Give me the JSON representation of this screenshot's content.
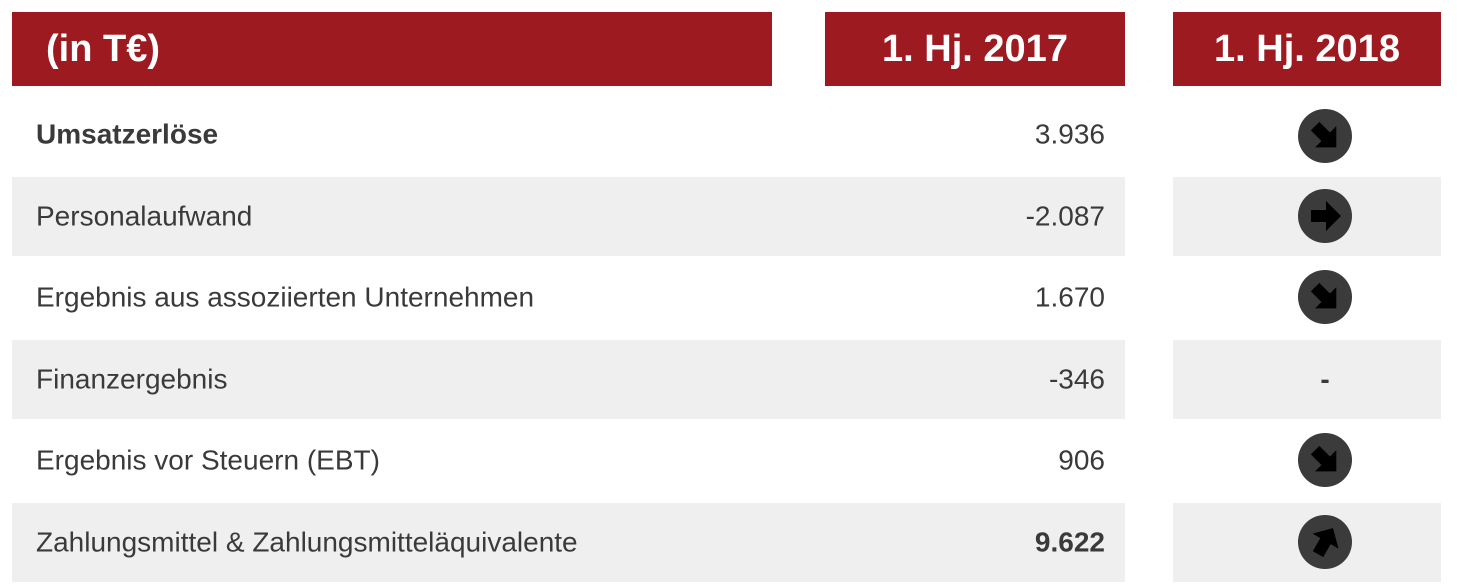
{
  "table": {
    "header": [
      "(in T€)",
      "1. Hj. 2017",
      "1. Hj. 2018"
    ],
    "rows": [
      [
        "Umsatzerlöse",
        "3.936"
      ],
      [
        "Personalaufwand",
        "-2.087"
      ],
      [
        "Ergebnis aus assoziierten Unternehmen",
        "1.670"
      ],
      [
        "Finanzergebnis",
        "-346",
        "-"
      ],
      [
        "Ergebnis vor Steuern (EBT)",
        "906"
      ],
      [
        "Zahlungsmittel & Zahlungsmitteläquivalente",
        "9.622"
      ]
    ]
  }
}
